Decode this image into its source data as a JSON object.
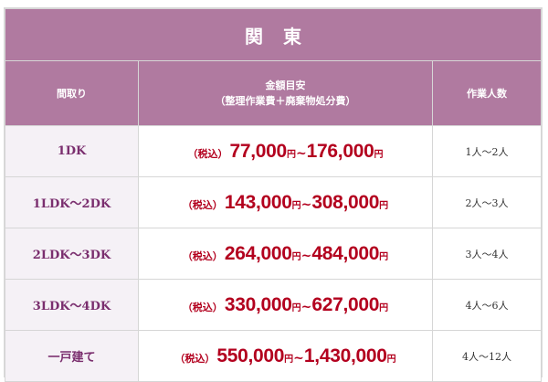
{
  "region": "関東",
  "headers": {
    "room": "間取り",
    "price_line1": "金額目安",
    "price_line2": "（整理作業費＋廃棄物処分費）",
    "staff": "作業人数"
  },
  "tax_label": "（税込）",
  "yen": "円",
  "tilde": "~",
  "rows": [
    {
      "room": "1DK",
      "min": "77,000",
      "max": "176,000",
      "staff": "1人～2人"
    },
    {
      "room": "1LDK～2DK",
      "min": "143,000",
      "max": "308,000",
      "staff": "2人～3人"
    },
    {
      "room": "2LDK～3DK",
      "min": "264,000",
      "max": "484,000",
      "staff": "3人～4人"
    },
    {
      "room": "3LDK～4DK",
      "min": "330,000",
      "max": "627,000",
      "staff": "4人～6人"
    },
    {
      "room": "一戸建て",
      "min": "550,000",
      "max": "1,430,000",
      "staff": "4人～12人"
    }
  ]
}
